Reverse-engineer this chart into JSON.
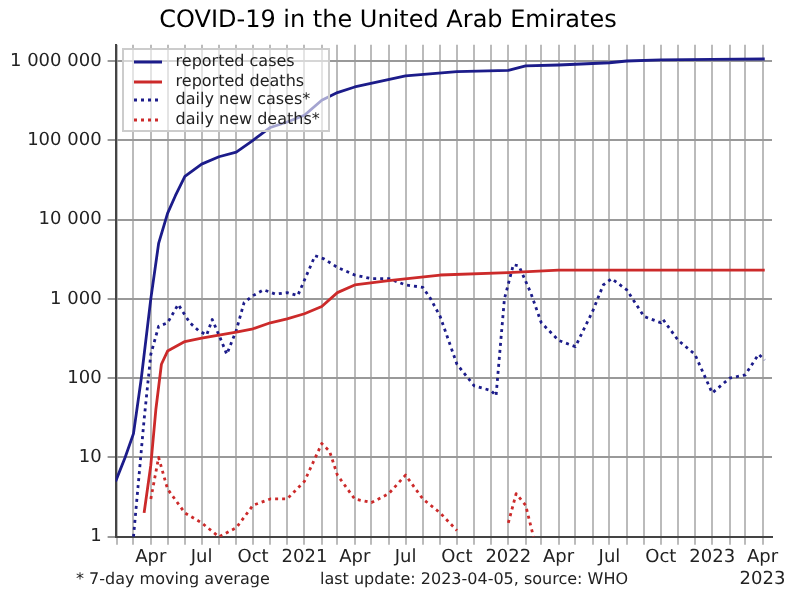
{
  "chart_data": {
    "type": "line",
    "title": "COVID-19 in the United Arab Emirates",
    "xlim": [
      "2020-01-29",
      "2023-04-18"
    ],
    "xticks": [
      {
        "value": "2020-02-01",
        "label": null
      },
      {
        "value": "2020-03-01",
        "label": null
      },
      {
        "value": "2020-04-01",
        "label": "Apr"
      },
      {
        "value": "2020-05-01",
        "label": null
      },
      {
        "value": "2020-06-01",
        "label": null
      },
      {
        "value": "2020-07-01",
        "label": "Jul"
      },
      {
        "value": "2020-08-01",
        "label": null
      },
      {
        "value": "2020-09-01",
        "label": null
      },
      {
        "value": "2020-10-01",
        "label": "Oct"
      },
      {
        "value": "2020-11-01",
        "label": null
      },
      {
        "value": "2020-12-01",
        "label": null
      },
      {
        "value": "2021-01-01",
        "label": "2021"
      },
      {
        "value": "2021-02-01",
        "label": null
      },
      {
        "value": "2021-03-01",
        "label": null
      },
      {
        "value": "2021-04-01",
        "label": "Apr"
      },
      {
        "value": "2021-05-01",
        "label": null
      },
      {
        "value": "2021-06-01",
        "label": null
      },
      {
        "value": "2021-07-01",
        "label": "Jul"
      },
      {
        "value": "2021-08-01",
        "label": null
      },
      {
        "value": "2021-09-01",
        "label": null
      },
      {
        "value": "2021-10-01",
        "label": "Oct"
      },
      {
        "value": "2021-11-01",
        "label": null
      },
      {
        "value": "2021-12-01",
        "label": null
      },
      {
        "value": "2022-01-01",
        "label": "2022"
      },
      {
        "value": "2022-02-01",
        "label": null
      },
      {
        "value": "2022-03-01",
        "label": null
      },
      {
        "value": "2022-04-01",
        "label": "Apr"
      },
      {
        "value": "2022-05-01",
        "label": null
      },
      {
        "value": "2022-06-01",
        "label": null
      },
      {
        "value": "2022-07-01",
        "label": "Jul"
      },
      {
        "value": "2022-08-01",
        "label": null
      },
      {
        "value": "2022-09-01",
        "label": null
      },
      {
        "value": "2022-10-01",
        "label": "Oct"
      },
      {
        "value": "2022-11-01",
        "label": null
      },
      {
        "value": "2022-12-01",
        "label": null
      },
      {
        "value": "2023-01-01",
        "label": "2023"
      },
      {
        "value": "2023-02-01",
        "label": null
      },
      {
        "value": "2023-03-01",
        "label": null
      },
      {
        "value": "2023-04-01",
        "label": "Apr\n2023"
      }
    ],
    "ylim": [
      1,
      1600000
    ],
    "log": true,
    "yticks": [
      1,
      10,
      100,
      {
        "value": 1000,
        "label": "1 000"
      },
      {
        "value": 10000,
        "label": "10 000"
      },
      {
        "value": 100000,
        "label": "100 000"
      },
      {
        "value": 1000000,
        "label": "1 000 000"
      }
    ],
    "grid": true,
    "legend": "top left",
    "marker": "none",
    "series": [
      {
        "name": "reported cases",
        "color": "#1c1c8a",
        "line_style": "solid",
        "x": [
          "2020-01-29",
          "2020-02-15",
          "2020-03-01",
          "2020-03-15",
          "2020-04-01",
          "2020-04-15",
          "2020-05-01",
          "2020-05-15",
          "2020-06-01",
          "2020-07-01",
          "2020-08-01",
          "2020-09-01",
          "2020-10-01",
          "2020-11-01",
          "2020-12-01",
          "2021-01-01",
          "2021-02-01",
          "2021-03-01",
          "2021-04-01",
          "2021-07-01",
          "2021-10-01",
          "2022-01-01",
          "2022-02-01",
          "2022-04-01",
          "2022-07-01",
          "2022-08-01",
          "2022-10-01",
          "2023-01-01",
          "2023-04-05"
        ],
        "values": [
          5,
          10,
          20,
          100,
          1000,
          5000,
          12000,
          20000,
          35000,
          50000,
          62000,
          71000,
          100000,
          145000,
          170000,
          207000,
          320000,
          400000,
          470000,
          650000,
          735000,
          760000,
          870000,
          890000,
          950000,
          1000000,
          1030000,
          1050000,
          1060000
        ]
      },
      {
        "name": "reported deaths",
        "color": "#cc2a2a",
        "line_style": "solid",
        "x": [
          "2020-03-20",
          "2020-04-01",
          "2020-04-10",
          "2020-04-20",
          "2020-05-01",
          "2020-06-01",
          "2020-07-01",
          "2020-08-01",
          "2020-09-01",
          "2020-10-01",
          "2020-11-01",
          "2020-12-01",
          "2021-01-01",
          "2021-02-01",
          "2021-03-01",
          "2021-04-01",
          "2021-06-01",
          "2021-09-01",
          "2022-01-01",
          "2022-04-01",
          "2023-04-05"
        ],
        "values": [
          2,
          8,
          40,
          150,
          220,
          290,
          320,
          350,
          380,
          420,
          500,
          560,
          650,
          800,
          1200,
          1500,
          1700,
          2000,
          2150,
          2300,
          2300
        ]
      },
      {
        "name": "daily new cases*",
        "color": "#1c1c8a",
        "line_style": "dotted",
        "x": [
          "2020-03-01",
          "2020-03-20",
          "2020-04-01",
          "2020-04-15",
          "2020-05-01",
          "2020-05-20",
          "2020-06-10",
          "2020-06-25",
          "2020-07-10",
          "2020-07-20",
          "2020-08-05",
          "2020-08-15",
          "2020-09-01",
          "2020-09-15",
          "2020-10-01",
          "2020-10-20",
          "2020-11-10",
          "2020-12-01",
          "2020-12-20",
          "2021-01-05",
          "2021-01-20",
          "2021-02-05",
          "2021-03-01",
          "2021-04-01",
          "2021-05-01",
          "2021-06-01",
          "2021-07-01",
          "2021-08-01",
          "2021-08-15",
          "2021-09-01",
          "2021-10-01",
          "2021-11-01",
          "2021-12-01",
          "2021-12-10",
          "2021-12-25",
          "2022-01-10",
          "2022-01-20",
          "2022-02-10",
          "2022-03-01",
          "2022-04-01",
          "2022-05-01",
          "2022-06-01",
          "2022-06-20",
          "2022-07-05",
          "2022-08-01",
          "2022-09-01",
          "2022-10-01",
          "2022-10-05",
          "2022-11-01",
          "2022-12-01",
          "2023-01-01",
          "2023-02-01",
          "2023-03-01",
          "2023-03-25",
          "2023-04-05"
        ],
        "values": [
          1,
          30,
          200,
          450,
          500,
          850,
          500,
          400,
          350,
          550,
          300,
          200,
          400,
          900,
          1100,
          1300,
          1150,
          1200,
          1100,
          2000,
          3500,
          3200,
          2500,
          2000,
          1800,
          1800,
          1500,
          1400,
          1000,
          600,
          150,
          80,
          70,
          60,
          1000,
          2700,
          2600,
          1200,
          500,
          300,
          250,
          700,
          1500,
          1800,
          1300,
          600,
          500,
          550,
          300,
          200,
          65,
          100,
          110,
          200,
          170
        ]
      },
      {
        "name": "daily new deaths*",
        "color": "#cc2a2a",
        "line_style": "dotted",
        "x": [
          "2020-04-01",
          "2020-04-15",
          "2020-05-01",
          "2020-06-01",
          "2020-07-01",
          "2020-08-01",
          "2020-09-01",
          "2020-10-01",
          "2020-11-01",
          "2020-12-01",
          "2021-01-01",
          "2021-02-01",
          "2021-02-15",
          "2021-03-01",
          "2021-04-01",
          "2021-05-01",
          "2021-06-01",
          "2021-07-01",
          "2021-08-01",
          "2021-09-01",
          "2021-10-01",
          "2021-11-01",
          "2022-01-01",
          "2022-01-15",
          "2022-02-01",
          "2022-02-15"
        ],
        "values": [
          3,
          10,
          4,
          2,
          1.5,
          1,
          1.3,
          2.5,
          3,
          3,
          5,
          15,
          12,
          6,
          3,
          2.7,
          3.5,
          6,
          3,
          2,
          1.2,
          null,
          1.5,
          3.5,
          2.5,
          1
        ]
      }
    ],
    "annotations": [
      "* 7-day moving average",
      "last update: 2023-04-05, source: WHO"
    ]
  }
}
